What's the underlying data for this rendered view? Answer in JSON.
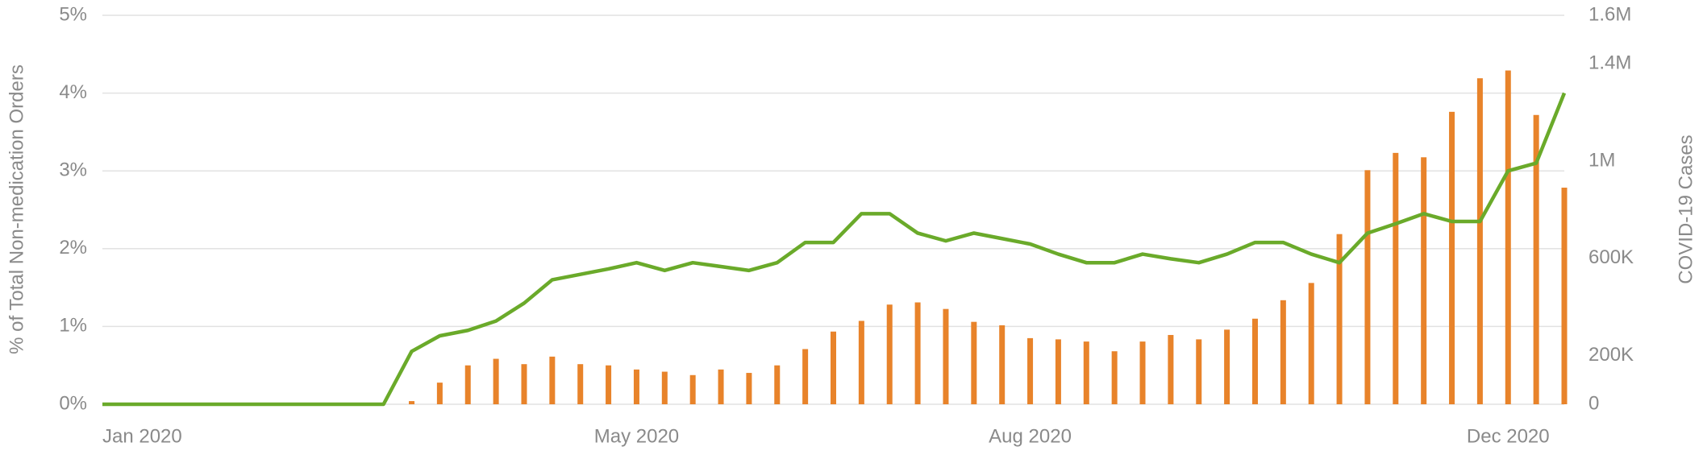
{
  "chart_data": {
    "type": "bar-line",
    "ylabel": "% of Total Non-medication Orders",
    "y2label": "COVID-19 Cases",
    "categories": [
      "Jan 2020",
      null,
      null,
      null,
      null,
      null,
      null,
      null,
      null,
      null,
      null,
      null,
      null,
      null,
      null,
      null,
      null,
      null,
      null,
      "May 2020",
      null,
      null,
      null,
      null,
      null,
      null,
      null,
      null,
      null,
      null,
      null,
      null,
      null,
      "Aug 2020",
      null,
      null,
      null,
      null,
      null,
      null,
      null,
      null,
      null,
      null,
      null,
      null,
      null,
      null,
      null,
      null,
      "Dec 2020",
      null,
      null
    ],
    "series": [
      {
        "type": "line",
        "color": "#6aaa2a",
        "axis": "y",
        "values": [
          0,
          0,
          0,
          0,
          0,
          0,
          0,
          0,
          0,
          0,
          0,
          0.68,
          0.88,
          0.95,
          1.07,
          1.3,
          1.6,
          1.67,
          1.74,
          1.82,
          1.72,
          1.82,
          1.77,
          1.72,
          1.82,
          2.08,
          2.08,
          2.45,
          2.45,
          2.2,
          2.1,
          2.2,
          2.13,
          2.06,
          1.93,
          1.82,
          1.82,
          1.93,
          1.87,
          1.82,
          1.93,
          2.08,
          2.08,
          1.93,
          1.82,
          2.2,
          2.32,
          2.45,
          2.35,
          2.35,
          3.0,
          3.1,
          4.0
        ]
      },
      {
        "type": "bar",
        "color": "#e8832a",
        "axis": "y2",
        "values": [
          null,
          null,
          null,
          null,
          null,
          null,
          null,
          null,
          null,
          null,
          null,
          13000,
          89000,
          160000,
          187000,
          165000,
          196000,
          165000,
          160000,
          143000,
          134000,
          120000,
          143000,
          129000,
          160000,
          227000,
          299000,
          343000,
          410000,
          419000,
          392000,
          339000,
          325000,
          272000,
          267000,
          258000,
          218000,
          258000,
          285000,
          267000,
          307000,
          352000,
          428000,
          499000,
          700000,
          963000,
          1034000,
          1016000,
          1203000,
          1341000,
          1373000,
          1190000,
          891000
        ]
      }
    ],
    "ylim": [
      0,
      5
    ],
    "yticks": [
      {
        "value": 0,
        "label": "0%"
      },
      {
        "value": 1,
        "label": "1%"
      },
      {
        "value": 2,
        "label": "2%"
      },
      {
        "value": 3,
        "label": "3%"
      },
      {
        "value": 4,
        "label": "4%"
      },
      {
        "value": 5,
        "label": "5%"
      }
    ],
    "y2lim": [
      0,
      1600000
    ],
    "y2ticks": [
      {
        "value": 0,
        "label": "0"
      },
      {
        "value": 200000,
        "label": "200K"
      },
      {
        "value": 600000,
        "label": "600K"
      },
      {
        "value": 1000000,
        "label": "1M"
      },
      {
        "value": 1400000,
        "label": "1.4M"
      },
      {
        "value": 1600000,
        "label": "1.6M"
      }
    ],
    "grid": true
  }
}
